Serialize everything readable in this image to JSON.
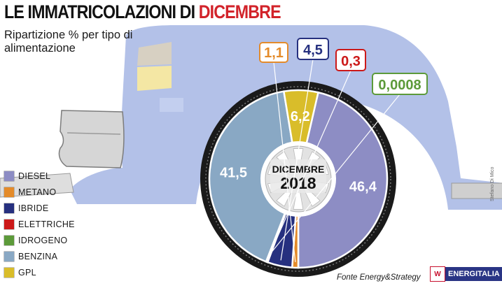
{
  "title_part1": "LE IMMATRICOLAZIONI DI ",
  "title_part2": "DICEMBRE",
  "subtitle": "Ripartizione % per tipo di alimentazione",
  "hub_line1": "DICEMBRE",
  "hub_line2": "2018",
  "source": "Fonte Energy&Strategy",
  "credit": "Stefano Di Mico",
  "logo": {
    "mark": "W",
    "text": "ENERGITALIA"
  },
  "colors": {
    "title_accent": "#d2232a",
    "car_body": "#b3c1e8",
    "tire": "#1a1a1a",
    "logo_bg": "#2a3585"
  },
  "chart_data": {
    "type": "pie",
    "title": "LE IMMATRICOLAZIONI DI DICEMBRE",
    "subtitle": "Ripartizione % per tipo di alimentazione",
    "legend_position": "left",
    "slices": [
      {
        "name": "DIESEL",
        "value": 46.4,
        "label": "46,4",
        "color": "#8d8dc4"
      },
      {
        "name": "METANO",
        "value": 1.1,
        "label": "1,1",
        "color": "#e48b2a"
      },
      {
        "name": "IBRIDE",
        "value": 4.5,
        "label": "4,5",
        "color": "#26307f"
      },
      {
        "name": "ELETTRICHE",
        "value": 0.3,
        "label": "0,3",
        "color": "#cc1919"
      },
      {
        "name": "IDROGENO",
        "value": 0.0008,
        "label": "0,0008",
        "color": "#5c9a3a"
      },
      {
        "name": "BENZINA",
        "value": 41.5,
        "label": "41,5",
        "color": "#89a8c4"
      },
      {
        "name": "GPL",
        "value": 6.2,
        "label": "6,2",
        "color": "#d9bd2a"
      }
    ]
  }
}
